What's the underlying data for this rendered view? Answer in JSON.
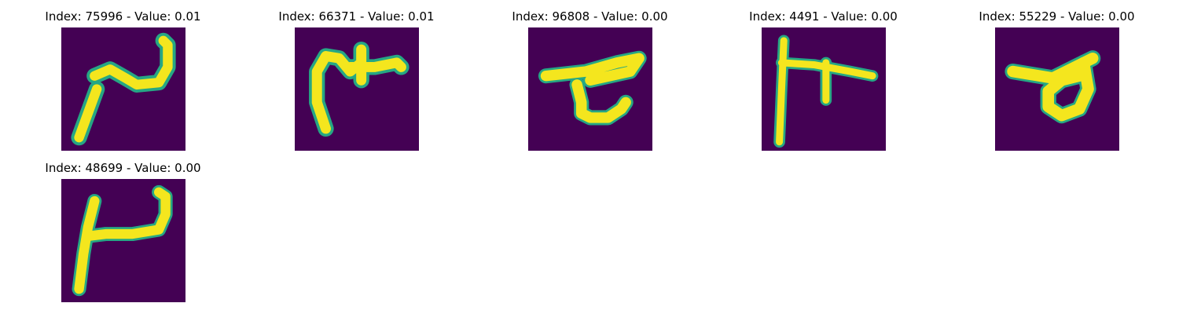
{
  "colors": {
    "background": "#440154",
    "stroke_core": "#f4e61e",
    "stroke_edge": "#26a784"
  },
  "images": [
    {
      "title": "Index: 75996 - Value: 0.01",
      "index": 75996,
      "value": 0.01
    },
    {
      "title": "Index: 66371 - Value: 0.01",
      "index": 66371,
      "value": 0.01
    },
    {
      "title": "Index: 96808 - Value: 0.00",
      "index": 96808,
      "value": 0.0
    },
    {
      "title": "Index: 4491 - Value: 0.00",
      "index": 4491,
      "value": 0.0
    },
    {
      "title": "Index: 55229 - Value: 0.00",
      "index": 55229,
      "value": 0.0
    },
    {
      "title": "Index: 48699 - Value: 0.00",
      "index": 48699,
      "value": 0.0
    }
  ]
}
